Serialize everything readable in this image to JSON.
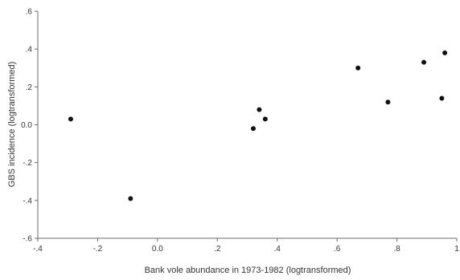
{
  "chart_data": {
    "type": "scatter",
    "title": "",
    "xlabel": "Bank vole abundance in 1973-1982 (logtransformed)",
    "ylabel": "GBS incidence (logtransformed)",
    "xlim": [
      -0.4,
      1.0
    ],
    "ylim": [
      -0.6,
      0.6
    ],
    "xticks": [
      -0.4,
      -0.2,
      0.0,
      0.2,
      0.4,
      0.6,
      0.8,
      1.0
    ],
    "xtick_labels": [
      "-.4",
      "-.2",
      "0.0",
      ".2",
      ".4",
      ".6",
      ".8",
      "1"
    ],
    "yticks": [
      -0.6,
      -0.4,
      -0.2,
      0.0,
      0.2,
      0.4,
      0.6
    ],
    "ytick_labels": [
      "-.6",
      "-.4",
      "-.2",
      "0.0",
      ".2",
      ".4",
      ".6"
    ],
    "grid": false,
    "series": [
      {
        "x": [
          -0.29,
          -0.09,
          0.32,
          0.34,
          0.36,
          0.67,
          0.77,
          0.89,
          0.95,
          0.96
        ],
        "y": [
          0.03,
          -0.39,
          -0.02,
          0.08,
          0.03,
          0.3,
          0.12,
          0.33,
          0.14,
          0.38
        ]
      }
    ]
  }
}
